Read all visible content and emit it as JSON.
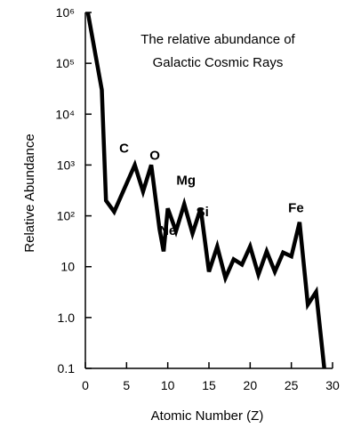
{
  "chart_data": {
    "type": "line",
    "title": [
      "The relative abundance of",
      "Galactic Cosmic Rays"
    ],
    "xlabel": "Atomic Number (Z)",
    "ylabel": "Relative Abundance",
    "xlim": [
      0,
      30
    ],
    "ylim": [
      0.1,
      1000000
    ],
    "y_scale": "log",
    "grid": false,
    "legend": "none",
    "line_color": "#000000",
    "x_ticks": [
      0,
      5,
      10,
      15,
      20,
      25,
      30
    ],
    "x_tick_labels": [
      "0",
      "5",
      "10",
      "15",
      "20",
      "25",
      "30"
    ],
    "y_ticks": [
      0.1,
      1,
      10,
      100,
      1000,
      10000,
      100000,
      1000000
    ],
    "y_tick_labels": [
      "0.1",
      "1.0",
      "10",
      "10²",
      "10³",
      "10⁴",
      "10⁵",
      "10⁶"
    ],
    "points": [
      {
        "x": 0.3,
        "y": 1000000
      },
      {
        "x": 2,
        "y": 30000
      },
      {
        "x": 2.5,
        "y": 200
      },
      {
        "x": 3.5,
        "y": 120
      },
      {
        "x": 6,
        "y": 1000
      },
      {
        "x": 7,
        "y": 300
      },
      {
        "x": 8,
        "y": 1000
      },
      {
        "x": 9,
        "y": 55
      },
      {
        "x": 9.5,
        "y": 20
      },
      {
        "x": 10,
        "y": 140
      },
      {
        "x": 11,
        "y": 50
      },
      {
        "x": 12,
        "y": 170
      },
      {
        "x": 13,
        "y": 45
      },
      {
        "x": 14,
        "y": 140
      },
      {
        "x": 15,
        "y": 8
      },
      {
        "x": 16,
        "y": 25
      },
      {
        "x": 17,
        "y": 6
      },
      {
        "x": 18,
        "y": 14
      },
      {
        "x": 19,
        "y": 11
      },
      {
        "x": 20,
        "y": 25
      },
      {
        "x": 21,
        "y": 7
      },
      {
        "x": 22,
        "y": 20
      },
      {
        "x": 23,
        "y": 8
      },
      {
        "x": 24,
        "y": 19
      },
      {
        "x": 25,
        "y": 16
      },
      {
        "x": 26,
        "y": 75
      },
      {
        "x": 27,
        "y": 1.8
      },
      {
        "x": 28,
        "y": 3.2
      },
      {
        "x": 29,
        "y": 0.1
      }
    ],
    "annotations": [
      {
        "text": "C",
        "x": 6,
        "y": 1000
      },
      {
        "text": "O",
        "x": 8,
        "y": 1000
      },
      {
        "text": "Ne",
        "x": 10,
        "y": 140
      },
      {
        "text": "Mg",
        "x": 12,
        "y": 170
      },
      {
        "text": "Si",
        "x": 14,
        "y": 140
      },
      {
        "text": "Fe",
        "x": 26,
        "y": 75
      }
    ]
  }
}
